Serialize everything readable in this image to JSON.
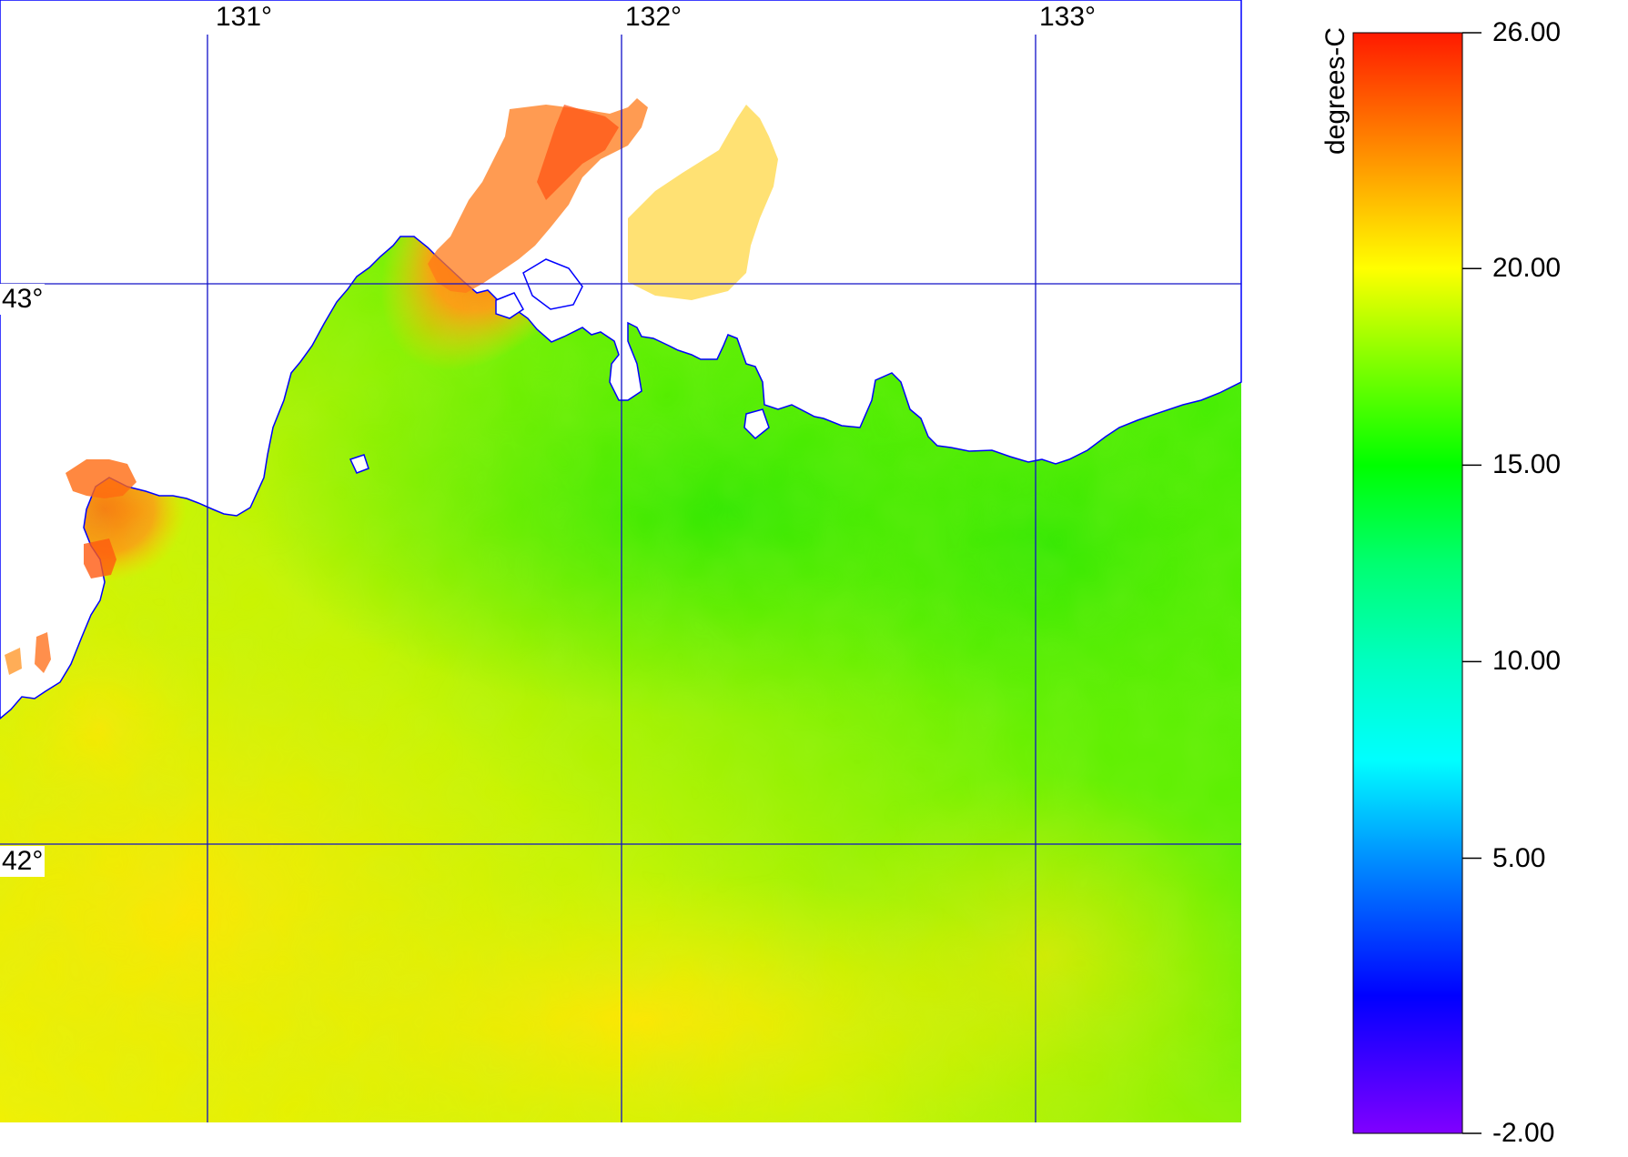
{
  "map": {
    "longitude_labels": [
      "131°",
      "132°",
      "133°"
    ],
    "latitude_labels": [
      "43°",
      "42°"
    ],
    "grid_color": "#1010c8",
    "coastline_color": "#0000ff",
    "land_color": "#ffffff"
  },
  "colorbar": {
    "unit_label": "degrees-C",
    "tick_labels": [
      "26.00",
      "20.00",
      "15.00",
      "10.00",
      "5.00",
      "-2.00"
    ],
    "tick_values": [
      26,
      20,
      15,
      10,
      5,
      -2
    ],
    "range": [
      -2,
      26
    ],
    "gradient_stops": [
      {
        "value": 26,
        "color": "#ff1a00"
      },
      {
        "value": 23,
        "color": "#ff8c00"
      },
      {
        "value": 20,
        "color": "#ffff00"
      },
      {
        "value": 17.5,
        "color": "#7cff00"
      },
      {
        "value": 15,
        "color": "#00ff00"
      },
      {
        "value": 12.5,
        "color": "#00ff70"
      },
      {
        "value": 10,
        "color": "#00ffc0"
      },
      {
        "value": 7.5,
        "color": "#00ffff"
      },
      {
        "value": 5,
        "color": "#0090ff"
      },
      {
        "value": 1.5,
        "color": "#0000ff"
      },
      {
        "value": -2,
        "color": "#8000ff"
      }
    ]
  }
}
